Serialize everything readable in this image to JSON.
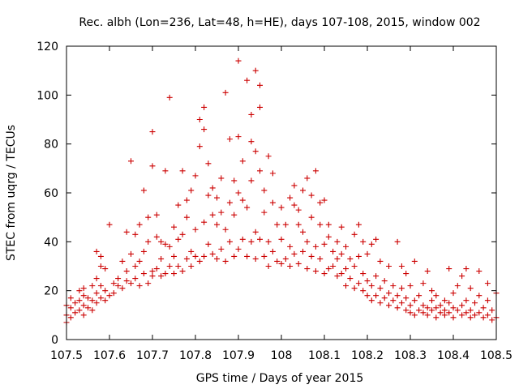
{
  "chart_data": {
    "type": "scatter",
    "title": "Rec. albh (Lon=236, Lat=48, h=HE), days 107-108, 2015, window 002",
    "xlabel": "GPS time / Days of year 2015",
    "ylabel": "STEC from uqrg / TECUs",
    "xlim": [
      107.5,
      108.5
    ],
    "ylim": [
      0,
      120
    ],
    "xticks": [
      "107.5",
      "107.6",
      "107.7",
      "107.8",
      "107.9",
      "108",
      "108.1",
      "108.2",
      "108.3",
      "108.4",
      "108.5"
    ],
    "yticks": [
      "0",
      "20",
      "40",
      "60",
      "80",
      "100",
      "120"
    ],
    "grid": false,
    "legend": "none",
    "marker": "plus",
    "marker_color": "#cc0000",
    "series": [
      {
        "points": [
          [
            107.5,
            7
          ],
          [
            107.5,
            10
          ],
          [
            107.5,
            14
          ],
          [
            107.51,
            9
          ],
          [
            107.51,
            13
          ],
          [
            107.51,
            17
          ],
          [
            107.52,
            11
          ],
          [
            107.52,
            15
          ],
          [
            107.53,
            12
          ],
          [
            107.53,
            16
          ],
          [
            107.53,
            20
          ],
          [
            107.54,
            10
          ],
          [
            107.54,
            14
          ],
          [
            107.54,
            18
          ],
          [
            107.54,
            21
          ],
          [
            107.55,
            13
          ],
          [
            107.55,
            17
          ],
          [
            107.56,
            12
          ],
          [
            107.56,
            16
          ],
          [
            107.56,
            22
          ],
          [
            107.57,
            15
          ],
          [
            107.57,
            19
          ],
          [
            107.57,
            25
          ],
          [
            107.57,
            36
          ],
          [
            107.58,
            17
          ],
          [
            107.58,
            22
          ],
          [
            107.58,
            30
          ],
          [
            107.58,
            34
          ],
          [
            107.59,
            16
          ],
          [
            107.59,
            20
          ],
          [
            107.59,
            29
          ],
          [
            107.6,
            18
          ],
          [
            107.6,
            47
          ],
          [
            107.61,
            19
          ],
          [
            107.61,
            23
          ],
          [
            107.62,
            22
          ],
          [
            107.62,
            25
          ],
          [
            107.63,
            21
          ],
          [
            107.63,
            32
          ],
          [
            107.64,
            24
          ],
          [
            107.64,
            28
          ],
          [
            107.64,
            44
          ],
          [
            107.65,
            23
          ],
          [
            107.65,
            35
          ],
          [
            107.65,
            73
          ],
          [
            107.66,
            25
          ],
          [
            107.66,
            30
          ],
          [
            107.66,
            43
          ],
          [
            107.67,
            22
          ],
          [
            107.67,
            32
          ],
          [
            107.67,
            47
          ],
          [
            107.68,
            27
          ],
          [
            107.68,
            36
          ],
          [
            107.68,
            61
          ],
          [
            107.69,
            23
          ],
          [
            107.69,
            40
          ],
          [
            107.69,
            50
          ],
          [
            107.7,
            26
          ],
          [
            107.7,
            28
          ],
          [
            107.7,
            71
          ],
          [
            107.7,
            85
          ],
          [
            107.71,
            29
          ],
          [
            107.71,
            42
          ],
          [
            107.71,
            51
          ],
          [
            107.72,
            26
          ],
          [
            107.72,
            33
          ],
          [
            107.72,
            40
          ],
          [
            107.73,
            27
          ],
          [
            107.73,
            39
          ],
          [
            107.73,
            69
          ],
          [
            107.74,
            30
          ],
          [
            107.74,
            38
          ],
          [
            107.74,
            99
          ],
          [
            107.75,
            27
          ],
          [
            107.75,
            34
          ],
          [
            107.75,
            46
          ],
          [
            107.76,
            30
          ],
          [
            107.76,
            41
          ],
          [
            107.76,
            55
          ],
          [
            107.77,
            28
          ],
          [
            107.77,
            43
          ],
          [
            107.77,
            69
          ],
          [
            107.78,
            33
          ],
          [
            107.78,
            50
          ],
          [
            107.78,
            57
          ],
          [
            107.79,
            30
          ],
          [
            107.79,
            36
          ],
          [
            107.79,
            61
          ],
          [
            107.8,
            34
          ],
          [
            107.8,
            45
          ],
          [
            107.8,
            67
          ],
          [
            107.81,
            32
          ],
          [
            107.81,
            79
          ],
          [
            107.81,
            90
          ],
          [
            107.82,
            34
          ],
          [
            107.82,
            48
          ],
          [
            107.82,
            86
          ],
          [
            107.82,
            95
          ],
          [
            107.83,
            39
          ],
          [
            107.83,
            59
          ],
          [
            107.83,
            72
          ],
          [
            107.84,
            35
          ],
          [
            107.84,
            51
          ],
          [
            107.84,
            62
          ],
          [
            107.85,
            33
          ],
          [
            107.85,
            47
          ],
          [
            107.85,
            58
          ],
          [
            107.86,
            37
          ],
          [
            107.86,
            52
          ],
          [
            107.86,
            66
          ],
          [
            107.87,
            32
          ],
          [
            107.87,
            45
          ],
          [
            107.87,
            101
          ],
          [
            107.88,
            40
          ],
          [
            107.88,
            56
          ],
          [
            107.88,
            82
          ],
          [
            107.89,
            34
          ],
          [
            107.89,
            51
          ],
          [
            107.89,
            65
          ],
          [
            107.9,
            37
          ],
          [
            107.9,
            60
          ],
          [
            107.9,
            83
          ],
          [
            107.9,
            114
          ],
          [
            107.91,
            41
          ],
          [
            107.91,
            57
          ],
          [
            107.91,
            73
          ],
          [
            107.92,
            34
          ],
          [
            107.92,
            54
          ],
          [
            107.92,
            106
          ],
          [
            107.93,
            40
          ],
          [
            107.93,
            65
          ],
          [
            107.93,
            81
          ],
          [
            107.93,
            92
          ],
          [
            107.94,
            33
          ],
          [
            107.94,
            44
          ],
          [
            107.94,
            77
          ],
          [
            107.94,
            110
          ],
          [
            107.95,
            41
          ],
          [
            107.95,
            69
          ],
          [
            107.95,
            95
          ],
          [
            107.95,
            104
          ],
          [
            107.96,
            34
          ],
          [
            107.96,
            52
          ],
          [
            107.96,
            61
          ],
          [
            107.97,
            30
          ],
          [
            107.97,
            40
          ],
          [
            107.97,
            75
          ],
          [
            107.98,
            36
          ],
          [
            107.98,
            56
          ],
          [
            107.98,
            68
          ],
          [
            107.99,
            32
          ],
          [
            107.99,
            47
          ],
          [
            108.0,
            31
          ],
          [
            108.0,
            41
          ],
          [
            108.0,
            54
          ],
          [
            108.01,
            33
          ],
          [
            108.01,
            47
          ],
          [
            108.02,
            30
          ],
          [
            108.02,
            38
          ],
          [
            108.02,
            58
          ],
          [
            108.03,
            35
          ],
          [
            108.03,
            55
          ],
          [
            108.03,
            63
          ],
          [
            108.04,
            31
          ],
          [
            108.04,
            47
          ],
          [
            108.04,
            53
          ],
          [
            108.05,
            36
          ],
          [
            108.05,
            44
          ],
          [
            108.05,
            61
          ],
          [
            108.06,
            29
          ],
          [
            108.06,
            40
          ],
          [
            108.06,
            66
          ],
          [
            108.07,
            34
          ],
          [
            108.07,
            50
          ],
          [
            108.07,
            59
          ],
          [
            108.08,
            28
          ],
          [
            108.08,
            38
          ],
          [
            108.08,
            69
          ],
          [
            108.09,
            33
          ],
          [
            108.09,
            47
          ],
          [
            108.09,
            56
          ],
          [
            108.1,
            27
          ],
          [
            108.1,
            39
          ],
          [
            108.1,
            57
          ],
          [
            108.11,
            29
          ],
          [
            108.11,
            42
          ],
          [
            108.11,
            47
          ],
          [
            108.12,
            30
          ],
          [
            108.12,
            36
          ],
          [
            108.13,
            26
          ],
          [
            108.13,
            33
          ],
          [
            108.13,
            40
          ],
          [
            108.14,
            27
          ],
          [
            108.14,
            35
          ],
          [
            108.14,
            46
          ],
          [
            108.15,
            22
          ],
          [
            108.15,
            29
          ],
          [
            108.15,
            38
          ],
          [
            108.16,
            25
          ],
          [
            108.16,
            33
          ],
          [
            108.17,
            21
          ],
          [
            108.17,
            30
          ],
          [
            108.17,
            43
          ],
          [
            108.18,
            23
          ],
          [
            108.18,
            34
          ],
          [
            108.18,
            47
          ],
          [
            108.19,
            20
          ],
          [
            108.19,
            27
          ],
          [
            108.19,
            40
          ],
          [
            108.2,
            18
          ],
          [
            108.2,
            24
          ],
          [
            108.2,
            35
          ],
          [
            108.21,
            16
          ],
          [
            108.21,
            22
          ],
          [
            108.21,
            39
          ],
          [
            108.22,
            18
          ],
          [
            108.22,
            26
          ],
          [
            108.22,
            41
          ],
          [
            108.23,
            15
          ],
          [
            108.23,
            21
          ],
          [
            108.23,
            32
          ],
          [
            108.24,
            17
          ],
          [
            108.24,
            24
          ],
          [
            108.25,
            14
          ],
          [
            108.25,
            19
          ],
          [
            108.25,
            30
          ],
          [
            108.26,
            16
          ],
          [
            108.26,
            22
          ],
          [
            108.27,
            13
          ],
          [
            108.27,
            18
          ],
          [
            108.27,
            40
          ],
          [
            108.28,
            15
          ],
          [
            108.28,
            21
          ],
          [
            108.28,
            30
          ],
          [
            108.29,
            12
          ],
          [
            108.29,
            17
          ],
          [
            108.29,
            27
          ],
          [
            108.3,
            11
          ],
          [
            108.3,
            14
          ],
          [
            108.3,
            22
          ],
          [
            108.31,
            10
          ],
          [
            108.31,
            16
          ],
          [
            108.31,
            32
          ],
          [
            108.32,
            12
          ],
          [
            108.32,
            18
          ],
          [
            108.33,
            11
          ],
          [
            108.33,
            14
          ],
          [
            108.33,
            23
          ],
          [
            108.34,
            10
          ],
          [
            108.34,
            13
          ],
          [
            108.34,
            28
          ],
          [
            108.35,
            12
          ],
          [
            108.35,
            16
          ],
          [
            108.35,
            20
          ],
          [
            108.36,
            9
          ],
          [
            108.36,
            13
          ],
          [
            108.36,
            18
          ],
          [
            108.37,
            11
          ],
          [
            108.37,
            14
          ],
          [
            108.38,
            10
          ],
          [
            108.38,
            12
          ],
          [
            108.38,
            16
          ],
          [
            108.39,
            11
          ],
          [
            108.39,
            15
          ],
          [
            108.39,
            29
          ],
          [
            108.4,
            9
          ],
          [
            108.4,
            13
          ],
          [
            108.4,
            19
          ],
          [
            108.41,
            12
          ],
          [
            108.41,
            22
          ],
          [
            108.42,
            10
          ],
          [
            108.42,
            14
          ],
          [
            108.42,
            26
          ],
          [
            108.43,
            11
          ],
          [
            108.43,
            16
          ],
          [
            108.43,
            29
          ],
          [
            108.44,
            9
          ],
          [
            108.44,
            12
          ],
          [
            108.44,
            21
          ],
          [
            108.45,
            10
          ],
          [
            108.45,
            15
          ],
          [
            108.46,
            11
          ],
          [
            108.46,
            18
          ],
          [
            108.46,
            28
          ],
          [
            108.47,
            9
          ],
          [
            108.47,
            13
          ],
          [
            108.48,
            10
          ],
          [
            108.48,
            16
          ],
          [
            108.48,
            23
          ],
          [
            108.49,
            8
          ],
          [
            108.49,
            12
          ],
          [
            108.5,
            9
          ],
          [
            108.5,
            19
          ]
        ]
      }
    ]
  }
}
